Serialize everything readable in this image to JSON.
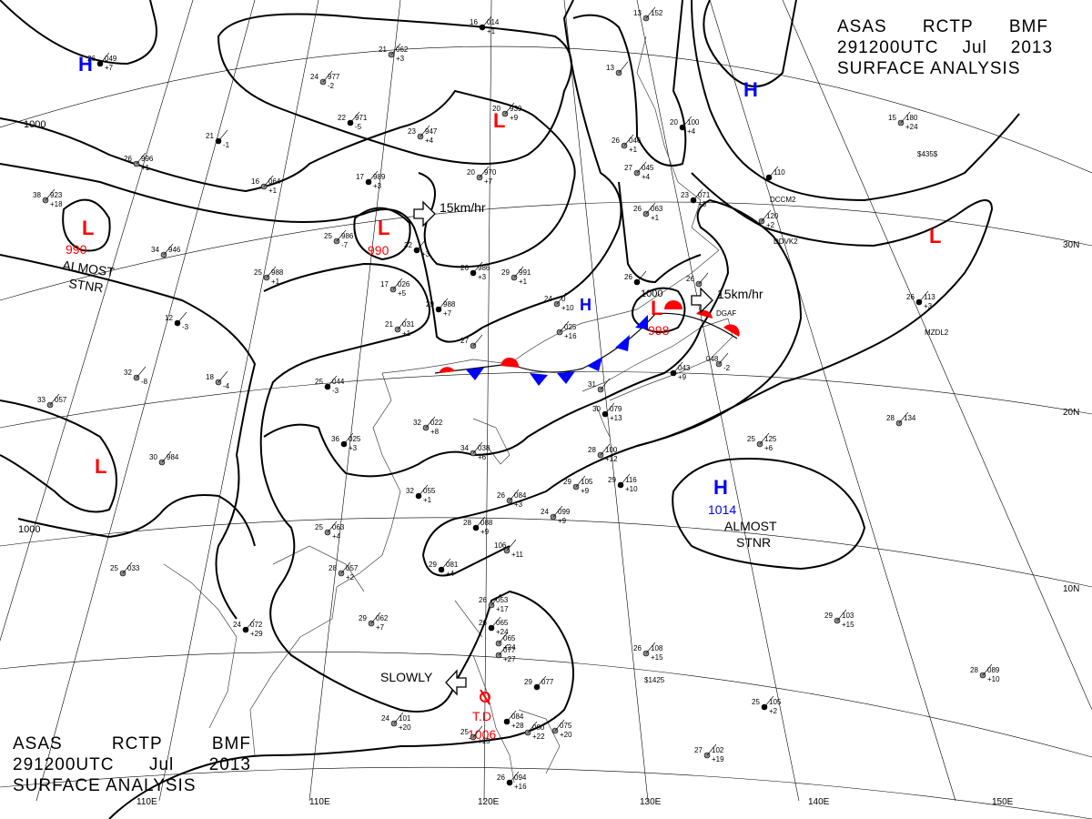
{
  "header": {
    "line1": [
      "ASAS",
      "RCTP",
      "BMF"
    ],
    "line2": [
      "291200UTC",
      "Jul",
      "2013"
    ],
    "line3": "SURFACE ANALYSIS"
  },
  "lon_labels": [
    "110E",
    "120E",
    "130E",
    "140E",
    "150E"
  ],
  "lat_labels": [
    "30N",
    "20N",
    "10N"
  ],
  "isobar_labels": [
    "1000",
    "1000",
    "1000"
  ],
  "pressure_systems": [
    {
      "type": "H",
      "color": "#0000ff",
      "value": ""
    },
    {
      "type": "H",
      "color": "#0000ff",
      "value": ""
    },
    {
      "type": "L",
      "color": "#ff0000",
      "value": ""
    },
    {
      "type": "L",
      "color": "#ff0000",
      "value": "990"
    },
    {
      "type": "L",
      "color": "#ff0000",
      "value": "990"
    },
    {
      "type": "L",
      "color": "#ff0000",
      "value": "998"
    },
    {
      "type": "L",
      "color": "#ff0000",
      "value": ""
    },
    {
      "type": "L",
      "color": "#ff0000",
      "value": ""
    },
    {
      "type": "H",
      "color": "#0000ff",
      "value": "1014"
    },
    {
      "type": "H",
      "color": "#0000ff",
      "value": ""
    }
  ],
  "motion_labels": [
    "15km/hr",
    "15km/hr",
    "SLOWLY"
  ],
  "stationary_labels": [
    [
      "ALMOST",
      "STNR"
    ],
    [
      "ALMOST",
      "STNR"
    ]
  ],
  "tropical_depression": {
    "name": "T.D",
    "pressure": "1006",
    "color": "#ff0000"
  },
  "stations": [
    {
      "t": "16",
      "p": "014",
      "s": "+1"
    },
    {
      "t": "21",
      "p": "062",
      "s": "+3"
    },
    {
      "t": "24",
      "p": "977",
      "s": "-2"
    },
    {
      "t": "22",
      "p": "971",
      "s": "-5"
    },
    {
      "t": "20",
      "p": "939",
      "s": "+9"
    },
    {
      "t": "23",
      "p": "947",
      "s": "+4"
    },
    {
      "t": "21",
      "p": "",
      "s": "-1"
    },
    {
      "t": "26",
      "p": "996",
      "s": "+1"
    },
    {
      "t": "16",
      "p": "064",
      "s": "+1"
    },
    {
      "t": "17",
      "p": "989",
      "s": "+3"
    },
    {
      "t": "20",
      "p": "970",
      "s": "+7"
    },
    {
      "t": "25",
      "p": "986",
      "s": "-7"
    },
    {
      "t": "32",
      "p": "",
      "s": "+3"
    },
    {
      "t": "34",
      "p": "946",
      "s": ""
    },
    {
      "t": "25",
      "p": "988",
      "s": "+1"
    },
    {
      "t": "26",
      "p": "986",
      "s": "+3"
    },
    {
      "t": "29",
      "p": "991",
      "s": "+1"
    },
    {
      "t": "17",
      "p": "026",
      "s": "+5"
    },
    {
      "t": "29",
      "p": "988",
      "s": "+7"
    },
    {
      "t": "21",
      "p": "031",
      "s": "+1"
    },
    {
      "t": "24",
      "p": "0",
      "s": "+10"
    },
    {
      "t": "12",
      "p": "",
      "s": "-3"
    },
    {
      "t": "18",
      "p": "",
      "s": "-4"
    },
    {
      "t": "32",
      "p": "",
      "s": "-8"
    },
    {
      "t": "25",
      "p": "044",
      "s": "-3"
    },
    {
      "t": "33",
      "p": "057",
      "s": ""
    },
    {
      "t": "30",
      "p": "984",
      "s": ""
    },
    {
      "t": "36",
      "p": "025",
      "s": "+3"
    },
    {
      "t": "32",
      "p": "022",
      "s": "+8"
    },
    {
      "t": "34",
      "p": "038",
      "s": "+6"
    },
    {
      "t": "32",
      "p": "055",
      "s": "+1"
    },
    {
      "t": "25",
      "p": "063",
      "s": "+4"
    },
    {
      "t": "26",
      "p": "084",
      "s": "+3"
    },
    {
      "t": "28",
      "p": "088",
      "s": "+9"
    },
    {
      "t": "24",
      "p": "099",
      "s": "+9"
    },
    {
      "t": "28",
      "p": "057",
      "s": "+2"
    },
    {
      "t": "29",
      "p": "081",
      "s": "+4"
    },
    {
      "t": "25",
      "p": "033",
      "s": ""
    },
    {
      "t": "106",
      "p": "",
      "s": "+11"
    },
    {
      "t": "24",
      "p": "072",
      "s": "+29"
    },
    {
      "t": "29",
      "p": "062",
      "s": "+7"
    },
    {
      "t": "26",
      "p": "053",
      "s": "+17"
    },
    {
      "t": "26",
      "p": "065",
      "s": "+24"
    },
    {
      "t": "",
      "p": "065",
      "s": "+24"
    },
    {
      "t": "",
      "p": "077",
      "s": "+27"
    },
    {
      "t": "29",
      "p": "077",
      "s": ""
    },
    {
      "t": "24",
      "p": "101",
      "s": "+20"
    },
    {
      "t": "25",
      "p": "",
      "s": "+15"
    },
    {
      "t": "",
      "p": "084",
      "s": "+28"
    },
    {
      "t": "",
      "p": "080",
      "s": "+22"
    },
    {
      "t": "",
      "p": "075",
      "s": "+20"
    },
    {
      "t": "26",
      "p": "094",
      "s": "+16"
    },
    {
      "t": "26",
      "p": "046",
      "s": "+1"
    },
    {
      "t": "27",
      "p": "045",
      "s": "+4"
    },
    {
      "t": "20",
      "p": "100",
      "s": "+4"
    },
    {
      "t": "13",
      "p": "",
      "s": ""
    },
    {
      "t": "26",
      "p": "063",
      "s": "+1"
    },
    {
      "t": "23",
      "p": "071",
      "s": "+3"
    },
    {
      "t": "26",
      "p": "",
      "s": ""
    },
    {
      "t": "",
      "p": "025",
      "s": "+16"
    },
    {
      "t": "",
      "p": "043",
      "s": "+9"
    },
    {
      "t": "048",
      "p": "",
      "s": "-2"
    },
    {
      "t": "31",
      "p": "",
      "s": ""
    },
    {
      "t": "30",
      "p": "079",
      "s": "+13"
    },
    {
      "t": "28",
      "p": "100",
      "s": "+12"
    },
    {
      "t": "29",
      "p": "105",
      "s": "+9"
    },
    {
      "t": "29",
      "p": "116",
      "s": "+10"
    },
    {
      "t": "25",
      "p": "125",
      "s": "+6"
    },
    {
      "t": "28",
      "p": "134",
      "s": ""
    },
    {
      "t": "26",
      "p": "113",
      "s": "+3"
    },
    {
      "t": "15",
      "p": "180",
      "s": "+24"
    },
    {
      "t": "",
      "p": "120",
      "s": "+2"
    },
    {
      "t": "",
      "p": "110",
      "s": ""
    },
    {
      "t": "29",
      "p": "103",
      "s": "+15"
    },
    {
      "t": "26",
      "p": "108",
      "s": "+15"
    },
    {
      "t": "25",
      "p": "105",
      "s": "+2"
    },
    {
      "t": "27",
      "p": "102",
      "s": "+19"
    },
    {
      "t": "28",
      "p": "089",
      "s": "+10"
    },
    {
      "t": "26",
      "p": "049",
      "s": "+7"
    },
    {
      "t": "38",
      "p": "923",
      "s": "+18"
    },
    {
      "t": "27",
      "p": "",
      "s": ""
    },
    {
      "t": "26",
      "p": "",
      "s": ""
    },
    {
      "t": "13",
      "p": "152",
      "s": ""
    }
  ],
  "station_ids": [
    "DCCM2",
    "DDVK2",
    "DGAF",
    "MZDL2",
    "$435$",
    "$1425"
  ]
}
